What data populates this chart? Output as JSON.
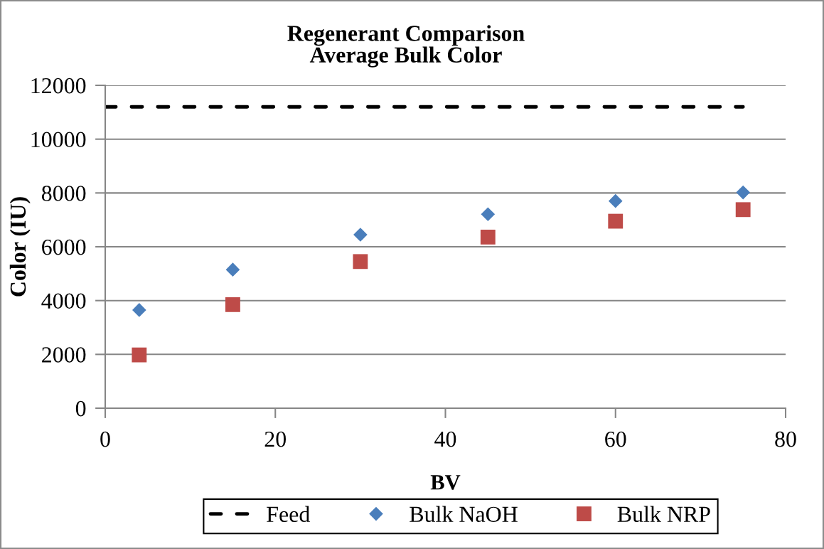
{
  "chart_data": {
    "type": "scatter",
    "title": "Regenerant Comparison\nAverage Bulk Color",
    "xlabel": "BV",
    "ylabel": "Color (IU)",
    "xlim": [
      0,
      80
    ],
    "xticks": [
      0,
      20,
      40,
      60,
      80
    ],
    "ylim": [
      0,
      12000
    ],
    "yticks": [
      0,
      2000,
      4000,
      6000,
      8000,
      10000,
      12000
    ],
    "grid": "y",
    "legend": "bottom",
    "series": [
      {
        "name": "Feed",
        "type": "line",
        "line_style": "dashed",
        "marker": "none",
        "color": "#000000",
        "x": [
          0,
          4,
          15,
          30,
          45,
          60,
          75
        ],
        "values": [
          11200,
          11200,
          11200,
          11200,
          11200,
          11200,
          11200
        ]
      },
      {
        "name": "Bulk NaOH",
        "marker": "diamond",
        "color": "#4a7ebb",
        "x": [
          4,
          15,
          30,
          45,
          60,
          75
        ],
        "values": [
          3650,
          5150,
          6450,
          7210,
          7700,
          8020
        ]
      },
      {
        "name": "Bulk NRP",
        "marker": "square",
        "color": "#be4b48",
        "x": [
          4,
          15,
          30,
          45,
          60,
          75
        ],
        "values": [
          1980,
          3850,
          5450,
          6360,
          6950,
          7380
        ]
      }
    ]
  }
}
